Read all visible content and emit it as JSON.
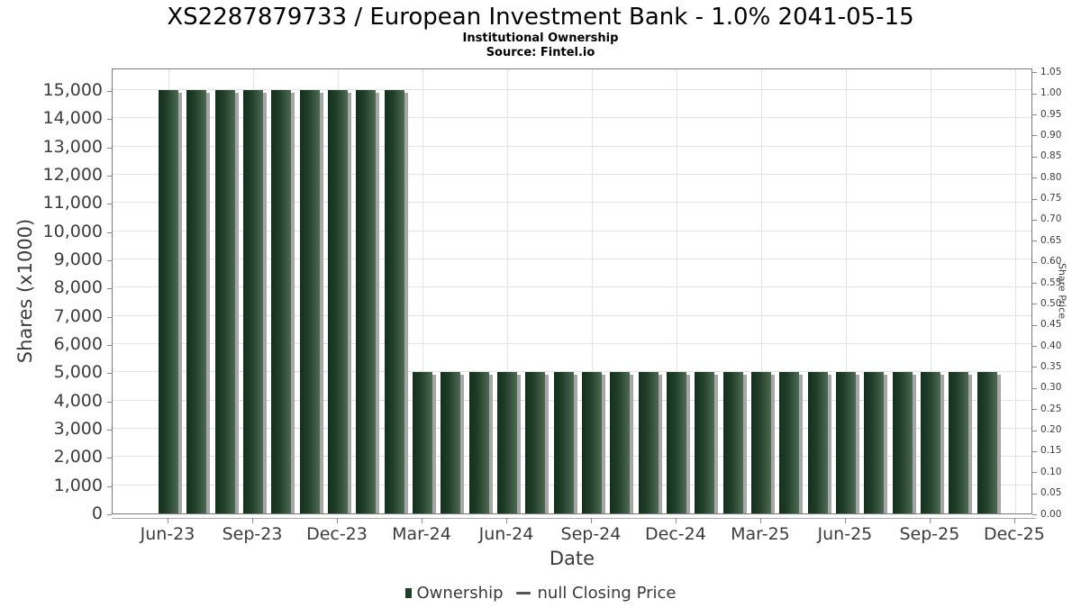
{
  "header": {
    "title": "XS2287879733 / European Investment Bank - 1.0% 2041-05-15",
    "subtitle": "Institutional Ownership",
    "source": "Source: Fintel.io"
  },
  "legend": {
    "ownership_label": "Ownership",
    "closing_price_label": "null Closing Price"
  },
  "colors": {
    "bar_dark": "#14301d",
    "bar_mid": "#1f3e28",
    "bar_light": "#4e6a53",
    "bar_shadow": "#a6a6a6",
    "grid": "#e3e3e3",
    "frame": "#7a7a7a",
    "tick_text": "#3c3c3c",
    "legend_swatch": "#1e4029",
    "legend_dash": "#555555"
  },
  "chart_data": {
    "type": "bar",
    "title": "XS2287879733 / European Investment Bank - 1.0% 2041-05-15",
    "subtitle": "Institutional Ownership",
    "source": "Source: Fintel.io",
    "series_name": "Ownership",
    "xlabel": "Date",
    "ylabel": "Shares (x1000)",
    "ylabel_right": "Share Price",
    "categories": [
      "Jun-23",
      "Jul-23",
      "Aug-23",
      "Sep-23",
      "Oct-23",
      "Nov-23",
      "Dec-23",
      "Jan-24",
      "Feb-24",
      "Mar-24",
      "Apr-24",
      "May-24",
      "Jun-24",
      "Jul-24",
      "Aug-24",
      "Sep-24",
      "Oct-24",
      "Nov-24",
      "Dec-24",
      "Jan-25",
      "Feb-25",
      "Mar-25",
      "Apr-25",
      "May-25",
      "Jun-25",
      "Jul-25",
      "Aug-25",
      "Sep-25",
      "Oct-25",
      "Nov-25"
    ],
    "values": [
      15000,
      15000,
      15000,
      15000,
      15000,
      15000,
      15000,
      15000,
      15000,
      5000,
      5000,
      5000,
      5000,
      5000,
      5000,
      5000,
      5000,
      5000,
      5000,
      5000,
      5000,
      5000,
      5000,
      5000,
      5000,
      5000,
      5000,
      5000,
      5000,
      5000
    ],
    "x_tick_labels": [
      "Jun-23",
      "Sep-23",
      "Dec-23",
      "Mar-24",
      "Jun-24",
      "Sep-24",
      "Dec-24",
      "Mar-25",
      "Jun-25",
      "Sep-25",
      "Dec-25"
    ],
    "x_tick_month_indices": [
      0,
      3,
      6,
      9,
      12,
      15,
      18,
      21,
      24,
      27,
      30
    ],
    "y_ticks_left": [
      "0",
      "1,000",
      "2,000",
      "3,000",
      "4,000",
      "5,000",
      "6,000",
      "7,000",
      "8,000",
      "9,000",
      "10,000",
      "11,000",
      "12,000",
      "13,000",
      "14,000",
      "15,000"
    ],
    "y_ticks_right": [
      "0.00",
      "0.05",
      "0.10",
      "0.15",
      "0.20",
      "0.25",
      "0.30",
      "0.35",
      "0.40",
      "0.45",
      "0.50",
      "0.55",
      "0.60",
      "0.65",
      "0.70",
      "0.75",
      "0.80",
      "0.85",
      "0.90",
      "0.95",
      "1.00",
      "1.05"
    ],
    "ylim_left": [
      0,
      15833
    ],
    "ylim_right": [
      0,
      1.06
    ],
    "grid": true,
    "legend_position": "bottom"
  }
}
